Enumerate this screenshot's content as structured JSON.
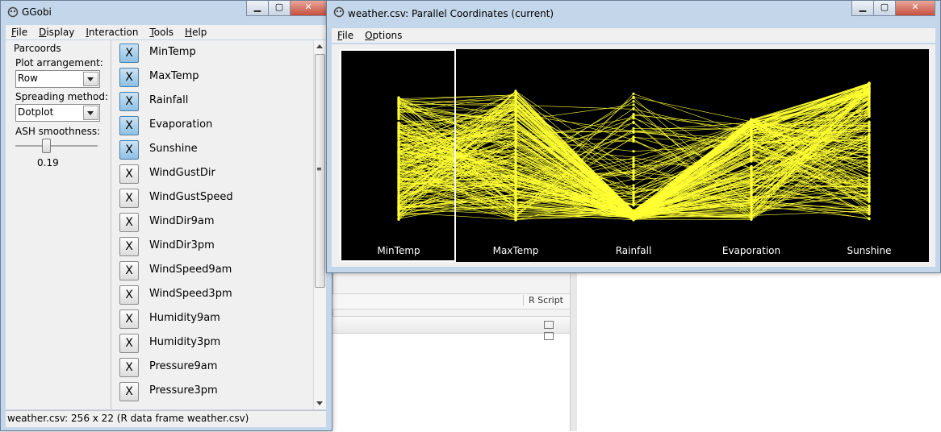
{
  "ggobi": {
    "title": "GGobi",
    "menu": [
      {
        "text": "File",
        "u": "F",
        "rest": "ile"
      },
      {
        "text": "Display",
        "u": "D",
        "rest": "isplay"
      },
      {
        "text": "Interaction",
        "u": "I",
        "rest": "nteraction"
      },
      {
        "text": "Tools",
        "u": "T",
        "rest": "ools"
      },
      {
        "text": "Help",
        "u": "H",
        "rest": "elp"
      }
    ],
    "panel": {
      "heading": "Parcoords",
      "plot_arrangement_label": "Plot arrangement:",
      "plot_arrangement_value": "Row",
      "spreading_label": "Spreading method:",
      "spreading_value": "Dotplot",
      "ash_label": "ASH smoothness:",
      "ash_value": "0.19"
    },
    "variables": [
      {
        "name": "MinTemp",
        "selected": true,
        "mark": "X"
      },
      {
        "name": "MaxTemp",
        "selected": true,
        "mark": "X"
      },
      {
        "name": "Rainfall",
        "selected": true,
        "mark": "X"
      },
      {
        "name": "Evaporation",
        "selected": true,
        "mark": "X"
      },
      {
        "name": "Sunshine",
        "selected": true,
        "mark": "X"
      },
      {
        "name": "WindGustDir",
        "selected": false,
        "mark": "X"
      },
      {
        "name": "WindGustSpeed",
        "selected": false,
        "mark": "X"
      },
      {
        "name": "WindDir9am",
        "selected": false,
        "mark": "X"
      },
      {
        "name": "WindDir3pm",
        "selected": false,
        "mark": "X"
      },
      {
        "name": "WindSpeed9am",
        "selected": false,
        "mark": "X"
      },
      {
        "name": "WindSpeed3pm",
        "selected": false,
        "mark": "X"
      },
      {
        "name": "Humidity9am",
        "selected": false,
        "mark": "X"
      },
      {
        "name": "Humidity3pm",
        "selected": false,
        "mark": "X"
      },
      {
        "name": "Pressure9am",
        "selected": false,
        "mark": "X"
      },
      {
        "name": "Pressure3pm",
        "selected": false,
        "mark": "X"
      }
    ],
    "status": "weather.csv: 256 x 22 (R data frame weather.csv)"
  },
  "parcoords": {
    "title": "weather.csv: Parallel Coordinates (current)",
    "menu": [
      {
        "text": "File",
        "u": "F",
        "rest": "ile"
      },
      {
        "text": "Options",
        "u": "O",
        "rest": "ptions"
      }
    ],
    "axes": [
      "MinTemp",
      "MaxTemp",
      "Rainfall",
      "Evaporation",
      "Sunshine"
    ],
    "selected_axis": "MinTemp"
  },
  "background": {
    "rscript_label": "R Script"
  },
  "colors": {
    "plot_background": "#000000",
    "line_color": "#ffff33",
    "selected_var": "#8fc0e4"
  }
}
